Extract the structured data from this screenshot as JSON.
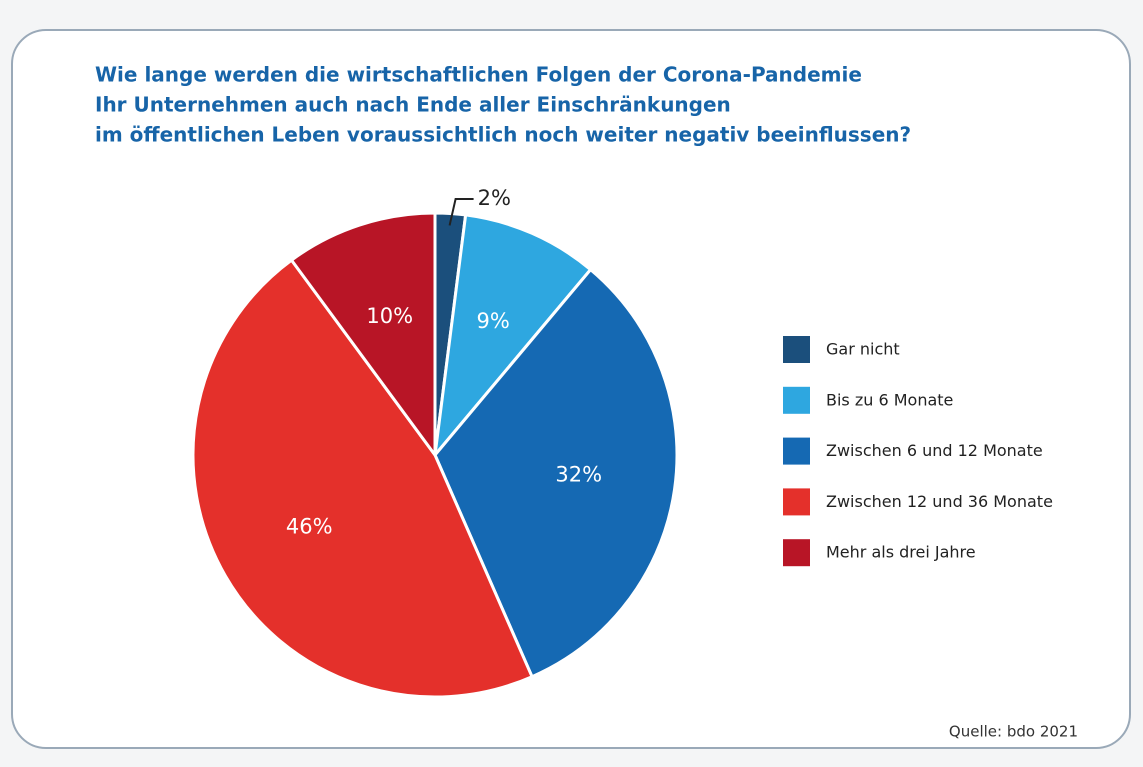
{
  "chart_data": {
    "type": "pie",
    "title": [
      "Wie lange werden die wirtschaftlichen Folgen der Corona-Pandemie",
      "Ihr Unternehmen auch nach Ende aller Einschränkungen",
      "im öffentlichen Leben voraussichtlich noch weiter negativ beeinflussen?"
    ],
    "categories": [
      "Gar nicht",
      "Bis zu 6 Monate",
      "Zwischen 6 und 12 Monate",
      "Zwischen 12 und 36 Monate",
      "Mehr als drei Jahre"
    ],
    "values": [
      2,
      9,
      32,
      46,
      10
    ],
    "value_labels": [
      "2%",
      "9%",
      "32%",
      "46%",
      "10%"
    ],
    "colors": [
      "#1b4f7c",
      "#2ea7e0",
      "#1569b3",
      "#e4302b",
      "#b81526"
    ],
    "legend": "right",
    "source": "Quelle: bdo 2021"
  }
}
